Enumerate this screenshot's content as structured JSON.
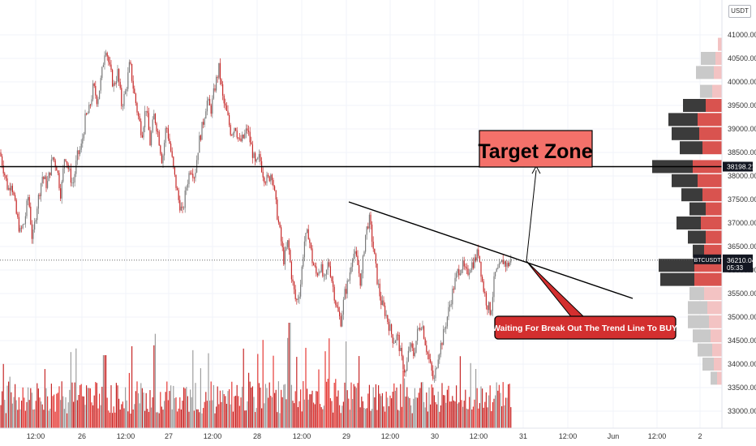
{
  "chart_data": {
    "type": "candlestick",
    "symbol": "BTCUSDT",
    "unit": "USDT",
    "ylim": [
      32700,
      41500
    ],
    "y_ticks": [
      33000,
      33500,
      34000,
      34500,
      35000,
      35500,
      36000,
      36500,
      37000,
      37500,
      38000,
      38500,
      39000,
      39500,
      40000,
      40500,
      41000
    ],
    "x_ticks": [
      "12:00",
      "26",
      "12:00",
      "27",
      "12:00",
      "28",
      "12:00",
      "29",
      "12:00",
      "30",
      "12:00",
      "31",
      "12:00",
      "Jun",
      "12:00",
      "2"
    ],
    "price_path": [
      [
        0,
        38500
      ],
      [
        5,
        38100
      ],
      [
        10,
        37700
      ],
      [
        14,
        37900
      ],
      [
        20,
        37200
      ],
      [
        25,
        36800
      ],
      [
        30,
        37000
      ],
      [
        35,
        37600
      ],
      [
        40,
        36600
      ],
      [
        45,
        37300
      ],
      [
        52,
        38000
      ],
      [
        58,
        37800
      ],
      [
        65,
        38400
      ],
      [
        70,
        38200
      ],
      [
        75,
        37600
      ],
      [
        80,
        38500
      ],
      [
        85,
        38100
      ],
      [
        90,
        37800
      ],
      [
        95,
        38400
      ],
      [
        100,
        38600
      ],
      [
        105,
        39200
      ],
      [
        110,
        39400
      ],
      [
        115,
        39900
      ],
      [
        120,
        39600
      ],
      [
        125,
        40100
      ],
      [
        130,
        40800
      ],
      [
        135,
        40300
      ],
      [
        140,
        39900
      ],
      [
        145,
        40200
      ],
      [
        150,
        39500
      ],
      [
        155,
        39800
      ],
      [
        160,
        40400
      ],
      [
        165,
        39800
      ],
      [
        170,
        39300
      ],
      [
        175,
        38900
      ],
      [
        180,
        39500
      ],
      [
        185,
        38700
      ],
      [
        190,
        39300
      ],
      [
        195,
        38900
      ],
      [
        200,
        38300
      ],
      [
        205,
        39100
      ],
      [
        210,
        38600
      ],
      [
        215,
        38000
      ],
      [
        220,
        37500
      ],
      [
        225,
        37200
      ],
      [
        230,
        37800
      ],
      [
        235,
        38200
      ],
      [
        240,
        38000
      ],
      [
        245,
        38700
      ],
      [
        250,
        39100
      ],
      [
        255,
        39600
      ],
      [
        260,
        39400
      ],
      [
        265,
        39900
      ],
      [
        270,
        40300
      ],
      [
        275,
        39600
      ],
      [
        280,
        39300
      ],
      [
        285,
        38900
      ],
      [
        290,
        39100
      ],
      [
        295,
        38700
      ],
      [
        300,
        38800
      ],
      [
        305,
        39000
      ],
      [
        310,
        38600
      ],
      [
        315,
        38200
      ],
      [
        320,
        38400
      ],
      [
        325,
        38000
      ],
      [
        330,
        37900
      ],
      [
        335,
        38100
      ],
      [
        340,
        37400
      ],
      [
        345,
        36800
      ],
      [
        350,
        36200
      ],
      [
        355,
        36600
      ],
      [
        360,
        35800
      ],
      [
        365,
        35300
      ],
      [
        370,
        35600
      ],
      [
        375,
        36600
      ],
      [
        380,
        36800
      ],
      [
        385,
        36200
      ],
      [
        390,
        35900
      ],
      [
        395,
        36100
      ],
      [
        400,
        35700
      ],
      [
        405,
        36200
      ],
      [
        410,
        35700
      ],
      [
        415,
        35200
      ],
      [
        420,
        34900
      ],
      [
        425,
        35500
      ],
      [
        430,
        35800
      ],
      [
        435,
        36400
      ],
      [
        440,
        36200
      ],
      [
        445,
        35700
      ],
      [
        450,
        36700
      ],
      [
        455,
        37100
      ],
      [
        460,
        36500
      ],
      [
        465,
        35800
      ],
      [
        470,
        35300
      ],
      [
        475,
        35100
      ],
      [
        480,
        34800
      ],
      [
        485,
        34500
      ],
      [
        490,
        34600
      ],
      [
        495,
        34100
      ],
      [
        500,
        33800
      ],
      [
        505,
        34400
      ],
      [
        510,
        34200
      ],
      [
        515,
        34700
      ],
      [
        520,
        34900
      ],
      [
        525,
        34400
      ],
      [
        530,
        34000
      ],
      [
        535,
        33600
      ],
      [
        540,
        34200
      ],
      [
        545,
        34500
      ],
      [
        550,
        34900
      ],
      [
        555,
        35300
      ],
      [
        560,
        35700
      ],
      [
        565,
        36000
      ],
      [
        570,
        36100
      ],
      [
        575,
        35900
      ],
      [
        580,
        36100
      ],
      [
        585,
        36200
      ],
      [
        590,
        36400
      ],
      [
        595,
        35700
      ],
      [
        600,
        35300
      ],
      [
        605,
        35100
      ],
      [
        610,
        35900
      ],
      [
        615,
        36000
      ],
      [
        620,
        36200
      ],
      [
        625,
        36100
      ],
      [
        630,
        36200
      ]
    ],
    "price_labels": [
      {
        "label": "38198.21",
        "price": 38198.21,
        "bg": "#131722"
      },
      {
        "label": "36210.04",
        "price": 36210.04,
        "bg": "#131722",
        "sub": "05:33",
        "tag": "BTCUSDT"
      }
    ],
    "volume_profile_rows": [
      {
        "price": 40800,
        "gray": 0,
        "red": 5,
        "faded": true
      },
      {
        "price": 40500,
        "gray": 18,
        "red": 8,
        "faded": true
      },
      {
        "price": 40200,
        "gray": 22,
        "red": 10,
        "faded": true
      },
      {
        "price": 39800,
        "gray": 15,
        "red": 12,
        "faded": true
      },
      {
        "price": 39500,
        "gray": 28,
        "red": 20,
        "faded": false
      },
      {
        "price": 39200,
        "gray": 36,
        "red": 30,
        "faded": false
      },
      {
        "price": 38900,
        "gray": 34,
        "red": 28,
        "faded": false
      },
      {
        "price": 38600,
        "gray": 28,
        "red": 24,
        "faded": false
      },
      {
        "price": 38200,
        "gray": 50,
        "red": 36,
        "faded": false
      },
      {
        "price": 37900,
        "gray": 32,
        "red": 30,
        "faded": false
      },
      {
        "price": 37600,
        "gray": 26,
        "red": 24,
        "faded": false
      },
      {
        "price": 37300,
        "gray": 20,
        "red": 20,
        "faded": false
      },
      {
        "price": 37000,
        "gray": 30,
        "red": 26,
        "faded": false
      },
      {
        "price": 36700,
        "gray": 22,
        "red": 20,
        "faded": false
      },
      {
        "price": 36400,
        "gray": 14,
        "red": 22,
        "faded": false
      },
      {
        "price": 36100,
        "gray": 44,
        "red": 34,
        "faded": false
      },
      {
        "price": 35800,
        "gray": 42,
        "red": 34,
        "faded": false
      },
      {
        "price": 35500,
        "gray": 18,
        "red": 22,
        "faded": true
      },
      {
        "price": 35200,
        "gray": 24,
        "red": 18,
        "faded": true
      },
      {
        "price": 34900,
        "gray": 26,
        "red": 16,
        "faded": true
      },
      {
        "price": 34600,
        "gray": 22,
        "red": 14,
        "faded": true
      },
      {
        "price": 34300,
        "gray": 18,
        "red": 12,
        "faded": true
      },
      {
        "price": 34000,
        "gray": 14,
        "red": 10,
        "faded": true
      },
      {
        "price": 33700,
        "gray": 8,
        "red": 6,
        "faded": true
      }
    ],
    "annotations": {
      "horizontal_level": 38198.21,
      "current_price": 36210.04,
      "target_zone": {
        "label": "Target Zone",
        "fill": "#f4716a"
      },
      "callout": {
        "label": "Waiting For Break Out The Trend Line To BUY",
        "fill": "#d32f2f"
      }
    },
    "colors": {
      "up": "#7a7a7a",
      "down": "#c62828",
      "line": "#000000",
      "grid": "#f0f3fa"
    }
  }
}
